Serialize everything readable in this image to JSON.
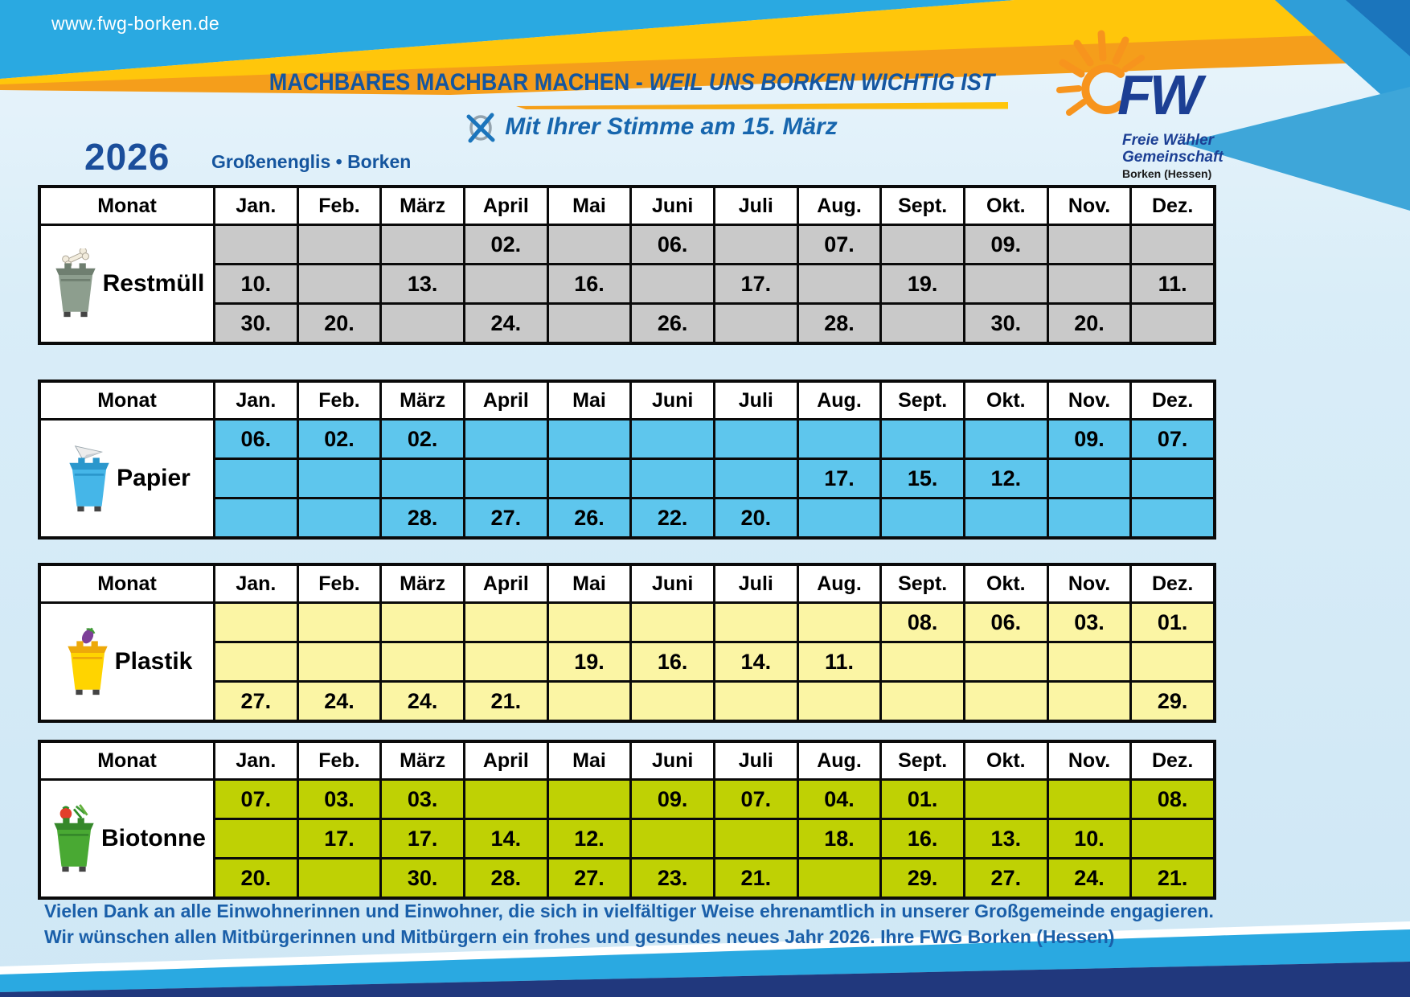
{
  "header": {
    "website": "www.fwg-borken.de",
    "slogan_bold": "MACHBARES MACHBAR MACHEN -",
    "slogan_italic": " WEIL UNS BORKEN WICHTIG IST",
    "vote_line": "Mit Ihrer Stimme am 15. März",
    "year": "2026",
    "location": "Großenenglis • Borken"
  },
  "logo": {
    "initials": "FW",
    "line1": "Freie Wähler",
    "line2": "Gemeinschaft",
    "line3": "Borken (Hessen)"
  },
  "months": [
    "Monat",
    "Jan.",
    "Feb.",
    "März",
    "April",
    "Mai",
    "Juni",
    "Juli",
    "Aug.",
    "Sept.",
    "Okt.",
    "Nov.",
    "Dez."
  ],
  "tables": [
    {
      "id": "restmuell",
      "label": "Restmüll",
      "icon": "gray-bin-bone-icon",
      "row_color": "#c9c9c9",
      "rows": [
        [
          "",
          "",
          "",
          "02.",
          "",
          "06.",
          "",
          "07.",
          "",
          "09.",
          "",
          ""
        ],
        [
          "10.",
          "",
          "13.",
          "",
          "16.",
          "",
          "17.",
          "",
          "19.",
          "",
          "",
          "11."
        ],
        [
          "30.",
          "20.",
          "",
          "24.",
          "",
          "26.",
          "",
          "28.",
          "",
          "30.",
          "20.",
          ""
        ]
      ]
    },
    {
      "id": "papier",
      "label": "Papier",
      "icon": "blue-bin-paper-plane-icon",
      "row_color": "#5ec6ed",
      "rows": [
        [
          "06.",
          "02.",
          "02.",
          "",
          "",
          "",
          "",
          "",
          "",
          "",
          "09.",
          "07."
        ],
        [
          "",
          "",
          "",
          "",
          "",
          "",
          "",
          "17.",
          "15.",
          "12.",
          "",
          ""
        ],
        [
          "",
          "",
          "28.",
          "27.",
          "26.",
          "22.",
          "20.",
          "",
          "",
          "",
          "",
          ""
        ]
      ]
    },
    {
      "id": "plastik",
      "label": "Plastik",
      "icon": "yellow-bin-eggplant-icon",
      "row_color": "#fbf5a4",
      "rows": [
        [
          "",
          "",
          "",
          "",
          "",
          "",
          "",
          "",
          "08.",
          "06.",
          "03.",
          "01."
        ],
        [
          "",
          "",
          "",
          "",
          "19.",
          "16.",
          "14.",
          "11.",
          "",
          "",
          "",
          ""
        ],
        [
          "27.",
          "24.",
          "24.",
          "21.",
          "",
          "",
          "",
          "",
          "",
          "",
          "",
          "29."
        ]
      ]
    },
    {
      "id": "biotonne",
      "label": "Biotonne",
      "icon": "green-bin-vegetables-icon",
      "row_color": "#bfd104",
      "rows": [
        [
          "07.",
          "03.",
          "03.",
          "",
          "",
          "09.",
          "07.",
          "04.",
          "01.",
          "",
          "",
          "08."
        ],
        [
          "",
          "17.",
          "17.",
          "14.",
          "12.",
          "",
          "",
          "18.",
          "16.",
          "13.",
          "10.",
          ""
        ],
        [
          "20.",
          "",
          "30.",
          "28.",
          "27.",
          "23.",
          "21.",
          "",
          "29.",
          "27.",
          "24.",
          "21."
        ]
      ]
    }
  ],
  "footer": {
    "line1": "Vielen Dank an alle Einwohnerinnen und Einwohner, die sich in vielfältiger Weise ehrenamtlich in unserer Großgemeinde engagieren.",
    "line2": "Wir wünschen allen Mitbürgerinnen und Mitbürgern ein frohes und gesundes neues Jahr 2026.  Ihre FWG Borken (Hessen)"
  },
  "colors": {
    "band_blue": "#2aa9e1",
    "band_yellow": "#ffc60b",
    "band_orange": "#f59e1b",
    "corner_blue": "#1b75bc",
    "navy_bottom": "#21387d",
    "title_blue": "#1456a0",
    "logo_blue": "#1c3f94"
  }
}
